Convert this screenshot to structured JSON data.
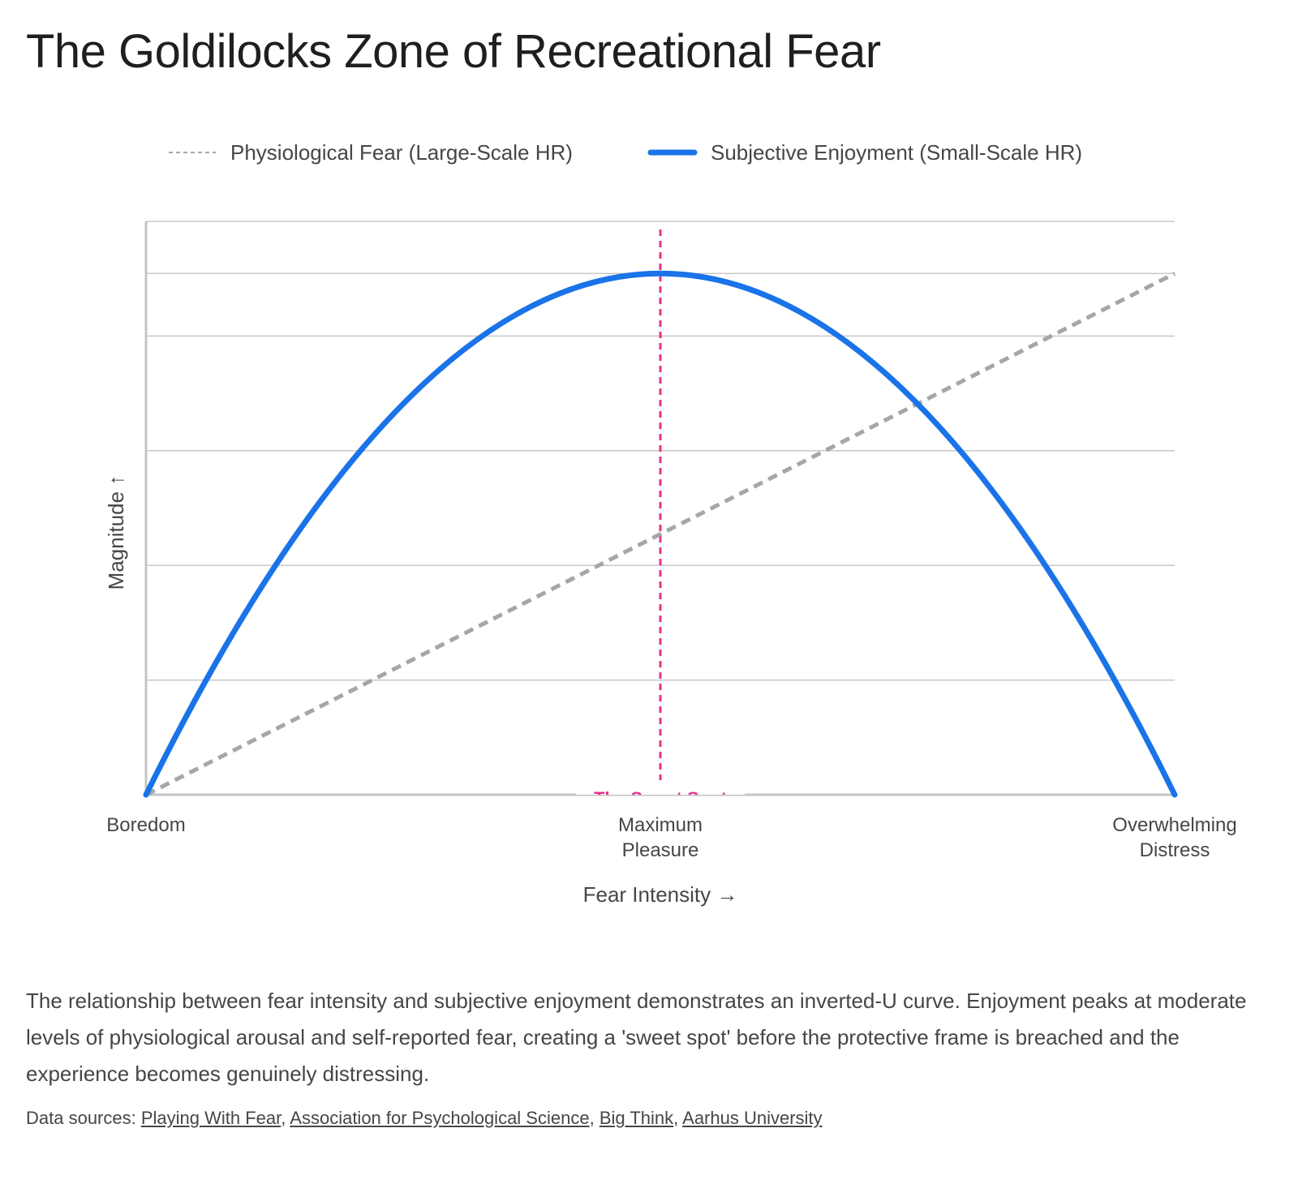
{
  "page": {
    "title": "The Goldilocks Zone of Recreational Fear",
    "description": "The relationship between fear intensity and subjective enjoyment demonstrates an inverted-U curve. Enjoyment peaks at moderate levels of physiological arousal and self-reported fear, creating a 'sweet spot' before the protective frame is breached and the experience becomes genuinely distressing.",
    "sources_label": "Data sources:",
    "sources": [
      "Playing With Fear",
      "Association for Psychological Science",
      "Big Think",
      "Aarhus University"
    ],
    "sources_separator": ", "
  },
  "colors": {
    "enjoyment": "#1a73e8",
    "physiological": "#a6a6a6",
    "sweet_spot": "#e8318e",
    "grid": "#c8c8c8",
    "axis": "#c4c4c4",
    "text": "#444746"
  },
  "chart_data": {
    "type": "line",
    "title": "The Goldilocks Zone of Recreational Fear",
    "xlabel": "Fear Intensity →",
    "ylabel": "Magnitude ↑",
    "x": [
      0,
      50,
      100
    ],
    "xlim": [
      0,
      100
    ],
    "ylim": [
      0,
      110
    ],
    "x_tick_labels": [
      {
        "value": 0,
        "lines": [
          "Boredom"
        ]
      },
      {
        "value": 50,
        "lines": [
          "Maximum",
          "Pleasure"
        ]
      },
      {
        "value": 100,
        "lines": [
          "Overwhelming",
          "Distress"
        ]
      }
    ],
    "y_gridlines": [
      0,
      22,
      44,
      66,
      88,
      100,
      110
    ],
    "grid": true,
    "legend": {
      "position": "top",
      "entries": [
        {
          "name": "Physiological Fear (Large-Scale HR)",
          "style": "dashed"
        },
        {
          "name": "Subjective Enjoyment (Small-Scale HR)",
          "style": "solid"
        }
      ]
    },
    "series": [
      {
        "name": "Physiological Fear (Large-Scale HR)",
        "shape": "linear",
        "x": [
          0,
          50,
          100
        ],
        "values": [
          0,
          50,
          100
        ]
      },
      {
        "name": "Subjective Enjoyment (Small-Scale HR)",
        "shape": "quadratic",
        "x": [
          0,
          50,
          100
        ],
        "values": [
          0,
          100,
          0
        ]
      }
    ],
    "annotations": [
      {
        "type": "vline",
        "x": 50,
        "label": "The Sweet Spot"
      }
    ]
  }
}
